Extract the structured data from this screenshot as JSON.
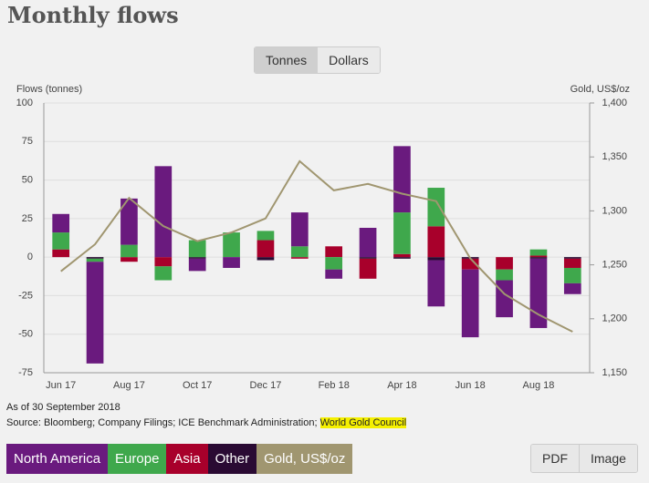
{
  "header": {
    "title": "Monthly flows",
    "toggle": [
      "Tonnes",
      "Dollars"
    ]
  },
  "chart_data": {
    "type": "bar",
    "stacked": true,
    "ylabel": "Flows (tonnes)",
    "y2label": "Gold, US$/oz",
    "categories": [
      "Jun 17",
      null,
      "Aug 17",
      null,
      "Oct 17",
      null,
      "Dec 17",
      null,
      "Feb 18",
      null,
      "Apr 18",
      null,
      "Jun 18",
      null,
      "Aug 18",
      null
    ],
    "series": [
      {
        "name": "North America",
        "color": "#6a1a7e",
        "values": [
          12,
          -66,
          30,
          59,
          -8,
          -7,
          0,
          22,
          -6,
          19,
          43,
          -30,
          -44,
          -24,
          -45,
          -7
        ]
      },
      {
        "name": "Europe",
        "color": "#3fa84c",
        "values": [
          11,
          -2,
          8,
          -9,
          11,
          16,
          6,
          7,
          -8,
          0,
          27,
          25,
          0,
          -7,
          4,
          -10
        ]
      },
      {
        "name": "Asia",
        "color": "#a8002b",
        "values": [
          5,
          0,
          -3,
          -6,
          0,
          0,
          11,
          -1,
          7,
          -13,
          2,
          20,
          -7,
          -8,
          1,
          -6
        ]
      },
      {
        "name": "Other",
        "color": "#2a0a33",
        "values": [
          0,
          -1,
          0,
          0,
          -1,
          0,
          -2,
          0,
          0,
          -1,
          -1,
          -2,
          -1,
          0,
          -1,
          -1
        ]
      },
      {
        "name": "Gold, US$/oz",
        "color": "#a09670",
        "type": "line",
        "axis": "y2",
        "values": [
          1244,
          1269,
          1312,
          1286,
          1272,
          1280,
          1293,
          1346,
          1319,
          1325,
          1316,
          1309,
          1256,
          1223,
          1204,
          1188
        ]
      }
    ],
    "ylim": [
      -75,
      100
    ],
    "yticks": [
      -75,
      -50,
      -25,
      0,
      25,
      50,
      75,
      100
    ],
    "y2lim": [
      1150,
      1400
    ],
    "y2ticks": [
      {
        "value": 1150,
        "label": "1,150"
      },
      {
        "value": 1200,
        "label": "1,200"
      },
      {
        "value": 1250,
        "label": "1,250"
      },
      {
        "value": 1300,
        "label": "1,300"
      },
      {
        "value": 1350,
        "label": "1,350"
      },
      {
        "value": 1400,
        "label": "1,400"
      }
    ],
    "grid": true
  },
  "notes": {
    "asof": "As of 30 September 2018",
    "source": "Source: Bloomberg; Company Filings; ICE Benchmark Administration;",
    "highlight": "World Gold Council"
  },
  "exports": [
    "PDF",
    "Image"
  ]
}
